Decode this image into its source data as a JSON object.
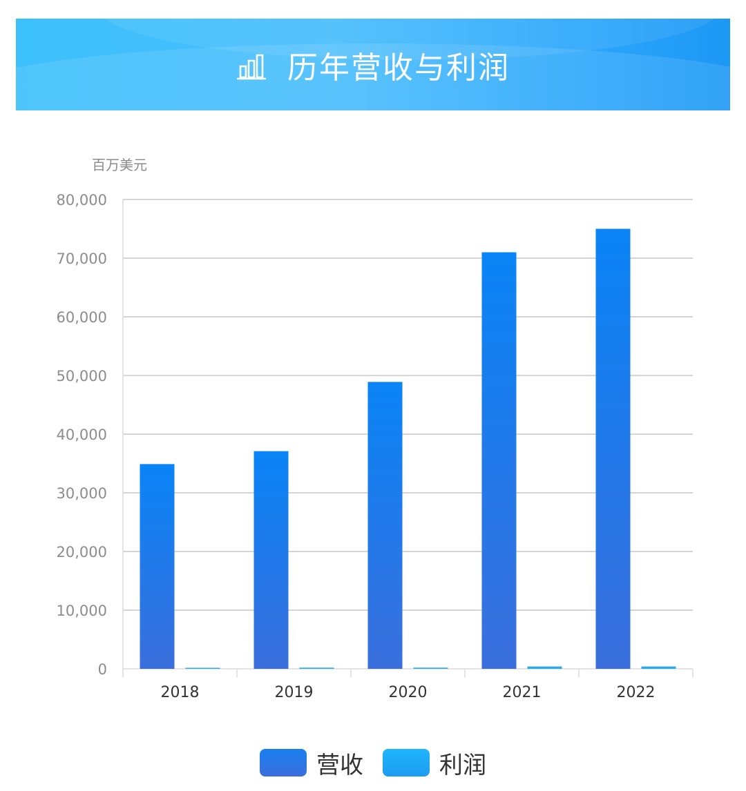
{
  "header": {
    "title": "历年营收与利润",
    "icon": "bar-chart-icon"
  },
  "colors": {
    "banner": "#3cc0fb",
    "revenue_top": "#0a84f6",
    "revenue_bottom": "#3a6fdd",
    "profit": "#2aabee",
    "grid": "#d4d4d4",
    "tick_text": "#8c8c8c",
    "category_text": "#333333"
  },
  "chart_data": {
    "type": "bar",
    "unit_label": "百万美元",
    "categories": [
      "2018",
      "2019",
      "2020",
      "2021",
      "2022"
    ],
    "series": [
      {
        "name": "营收",
        "values": [
          34900,
          37100,
          48900,
          71000,
          75000
        ]
      },
      {
        "name": "利润",
        "values": [
          100,
          200,
          200,
          400,
          400
        ]
      }
    ],
    "yticks": [
      "0",
      "10,000",
      "20,000",
      "30,000",
      "40,000",
      "50,000",
      "60,000",
      "70,000",
      "80,000"
    ],
    "ylim": [
      0,
      80000
    ],
    "grid": true,
    "legend_position": "bottom"
  }
}
